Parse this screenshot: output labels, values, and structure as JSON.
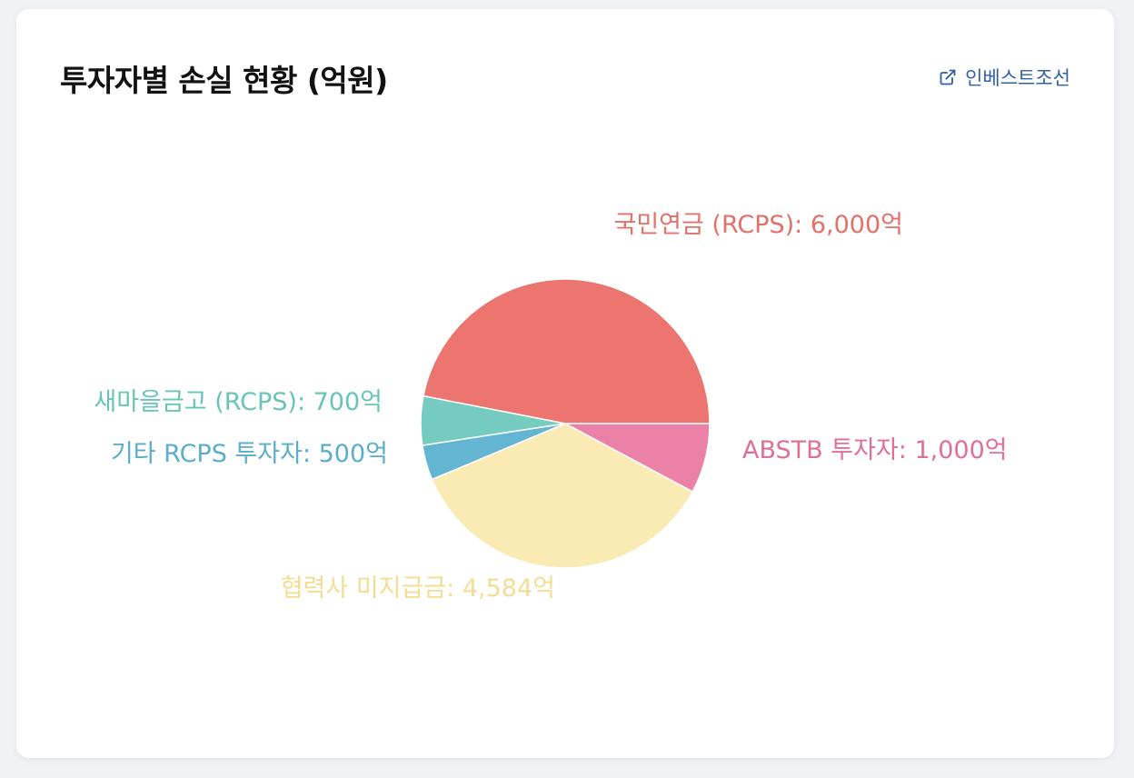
{
  "card": {
    "title": "투자자별 손실 현황 (억원)",
    "source_label": "인베스트조선",
    "source_icon": "external-link-icon"
  },
  "colors": {
    "link": "#2f5fad"
  },
  "chart_data": {
    "type": "pie",
    "title": "투자자별 손실 현황 (억원)",
    "unit": "억",
    "slices": [
      {
        "label": "ABSTB 투자자: 1,000억",
        "name": "ABSTB 투자자",
        "value": 1000,
        "color": "#ec81a7",
        "label_color": "#e06f98"
      },
      {
        "label": "협력사 미지급금: 4,584억",
        "name": "협력사 미지급금",
        "value": 4584,
        "color": "#faeab4",
        "label_color": "#f4dd93"
      },
      {
        "label": "기타 RCPS 투자자: 500억",
        "name": "기타 RCPS 투자자",
        "value": 500,
        "color": "#63b5d2",
        "label_color": "#5aaecb"
      },
      {
        "label": "새마을금고 (RCPS): 700억",
        "name": "새마을금고 (RCPS)",
        "value": 700,
        "color": "#75cbc0",
        "label_color": "#68c4b8"
      },
      {
        "label": "국민연금 (RCPS): 6,000억",
        "name": "국민연금 (RCPS)",
        "value": 6000,
        "color": "#ed756f",
        "label_color": "#e4706a"
      }
    ]
  }
}
